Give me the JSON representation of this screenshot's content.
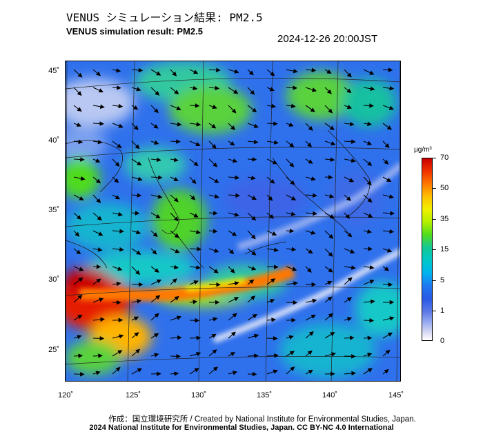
{
  "header": {
    "title_jp": "VENUS シミュレーション結果: PM2.5",
    "title_en": "VENUS simulation result: PM2.5",
    "timestamp": "2024-12-26 20:00JST"
  },
  "map": {
    "lat_labels": [
      "45˚",
      "40˚",
      "35˚",
      "30˚",
      "25˚"
    ],
    "lon_labels": [
      "120˚",
      "125˚",
      "130˚",
      "135˚",
      "140˚",
      "145˚"
    ]
  },
  "colorbar": {
    "unit": "µg/m³",
    "labels": [
      "70",
      "50",
      "35",
      "15",
      "5",
      "1",
      "0"
    ],
    "colors": [
      "#c80000",
      "#ff7800",
      "#f0f000",
      "#50dc1e",
      "#00c8c8",
      "#1e78f0",
      "#96aaf0",
      "#ffffff"
    ]
  },
  "footer": {
    "credit_jp": "作成：国立環境研究所 / Created by National Institute for Environmental Studies, Japan.",
    "copyright": "2024 National Institute for Environmental Studies, Japan. CC BY-NC 4.0 International"
  }
}
